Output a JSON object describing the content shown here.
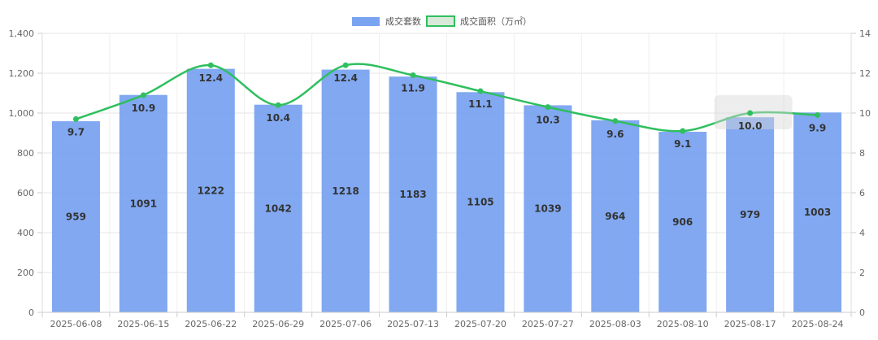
{
  "chart_data": {
    "type": "bar",
    "categories": [
      "2025-06-08",
      "2025-06-15",
      "2025-06-22",
      "2025-06-29",
      "2025-07-06",
      "2025-07-13",
      "2025-07-20",
      "2025-07-27",
      "2025-08-03",
      "2025-08-10",
      "2025-08-17",
      "2025-08-24"
    ],
    "series": [
      {
        "name": "成交套数",
        "type": "bar",
        "axis": "left",
        "color": "#7aa3f0",
        "values": [
          959,
          1091,
          1222,
          1042,
          1218,
          1183,
          1105,
          1039,
          964,
          906,
          979,
          1003
        ]
      },
      {
        "name": "成交面积（万㎡）",
        "type": "line",
        "axis": "right",
        "color": "#2fbf5e",
        "values": [
          9.7,
          10.9,
          12.4,
          10.4,
          12.4,
          11.9,
          11.1,
          10.3,
          9.6,
          9.1,
          10.0,
          9.9
        ]
      }
    ],
    "y_left": {
      "min": 0,
      "max": 1400,
      "step": 200,
      "tick_labels": [
        "0",
        "200",
        "400",
        "600",
        "800",
        "1,000",
        "1,200",
        "1,400"
      ]
    },
    "y_right": {
      "min": 0,
      "max": 14,
      "step": 2,
      "tick_labels": [
        "0",
        "2",
        "4",
        "6",
        "8",
        "10",
        "12",
        "14"
      ]
    },
    "legend_position": "top-center",
    "grid": true
  }
}
